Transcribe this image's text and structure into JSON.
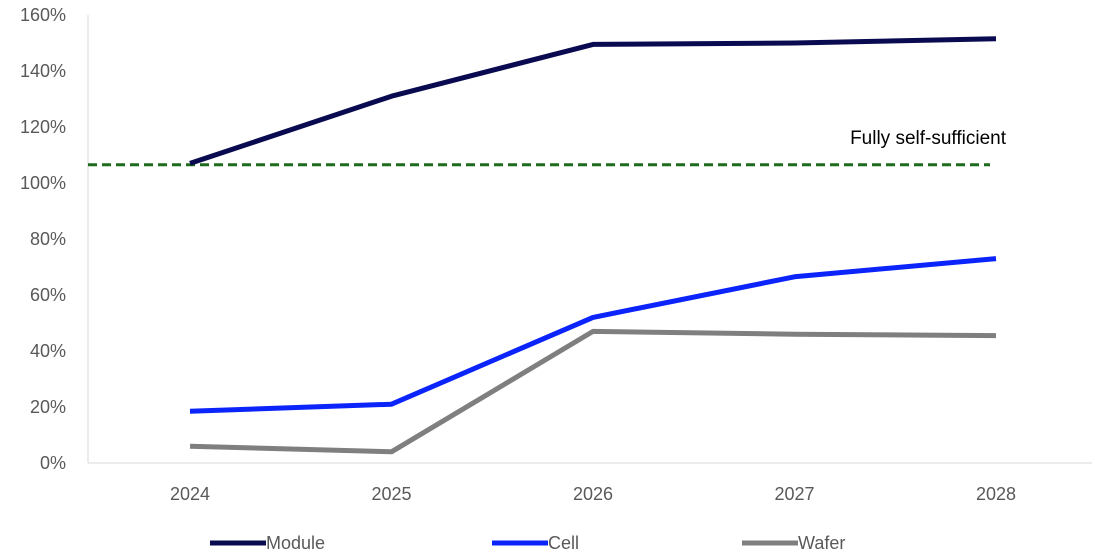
{
  "chart_data": {
    "type": "line",
    "title": "",
    "xlabel": "",
    "ylabel": "",
    "categories": [
      "2024",
      "2025",
      "2026",
      "2027",
      "2028"
    ],
    "ylim": [
      0,
      160
    ],
    "yticks": [
      0,
      20,
      40,
      60,
      80,
      100,
      120,
      140,
      160
    ],
    "ytick_labels": [
      "0%",
      "20%",
      "40%",
      "60%",
      "80%",
      "100%",
      "120%",
      "140%",
      "160%"
    ],
    "grid": false,
    "legend": "bottom",
    "series": [
      {
        "name": "Module",
        "color": "#0a0a50",
        "values": [
          107,
          131,
          149.5,
          150,
          151.5
        ]
      },
      {
        "name": "Cell",
        "color": "#0b24fb",
        "values": [
          18.5,
          21,
          52,
          66.5,
          73
        ]
      },
      {
        "name": "Wafer",
        "color": "#7f7f7f",
        "values": [
          6,
          4,
          47,
          46,
          45.5
        ]
      }
    ],
    "reference_line": {
      "label": "Fully self-sufficient",
      "value": 106.5,
      "color": "#1e6b1e",
      "style": "dashed"
    }
  }
}
